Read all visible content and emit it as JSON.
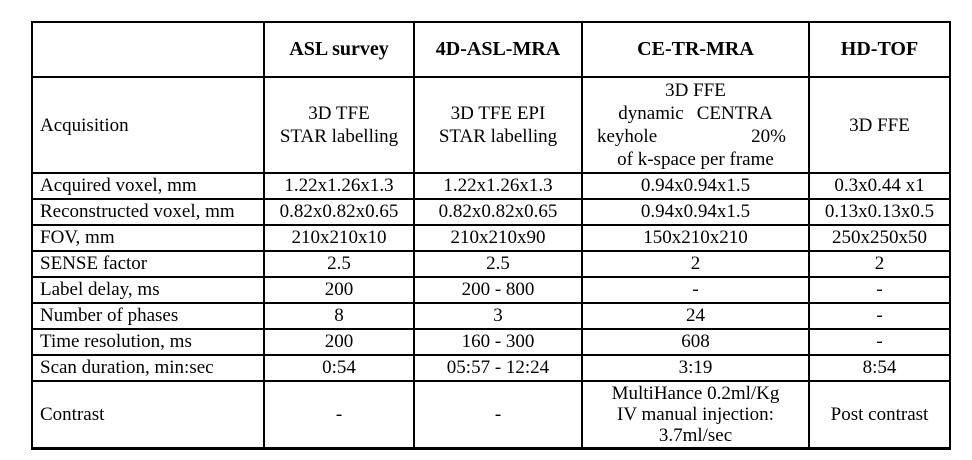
{
  "table": {
    "header": {
      "col1": "ASL survey",
      "col2": "4D-ASL-MRA",
      "col3": "CE-TR-MRA",
      "col4": "HD-TOF"
    },
    "acquisition": {
      "label": "Acquisition",
      "asl_survey_line1": "3D TFE",
      "asl_survey_line2": "STAR labelling",
      "asl_mra_line1": "3D TFE EPI",
      "asl_mra_line2": "STAR labelling",
      "ce_line1": "3D FFE",
      "ce_line2_word1": "dynamic",
      "ce_line2_word2": "CENTRA",
      "ce_line3_left": "keyhole",
      "ce_line3_right": "20%",
      "ce_line4": "of k-space per frame",
      "hd_tof": "3D FFE"
    },
    "rows": [
      {
        "label": "Acquired voxel, mm",
        "v1": "1.22x1.26x1.3",
        "v2": "1.22x1.26x1.3",
        "v3": "0.94x0.94x1.5",
        "v4": "0.3x0.44 x1"
      },
      {
        "label": "Reconstructed voxel, mm",
        "v1": "0.82x0.82x0.65",
        "v2": "0.82x0.82x0.65",
        "v3": "0.94x0.94x1.5",
        "v4": "0.13x0.13x0.5"
      },
      {
        "label": "FOV, mm",
        "v1": "210x210x10",
        "v2": "210x210x90",
        "v3": "150x210x210",
        "v4": "250x250x50"
      },
      {
        "label": "SENSE factor",
        "v1": "2.5",
        "v2": "2.5",
        "v3": "2",
        "v4": "2"
      },
      {
        "label": "Label delay, ms",
        "v1": "200",
        "v2": "200 - 800",
        "v3": "-",
        "v4": "-"
      },
      {
        "label": "Number of phases",
        "v1": "8",
        "v2": "3",
        "v3": "24",
        "v4": "-"
      },
      {
        "label": "Time resolution, ms",
        "v1": "200",
        "v2": "160 - 300",
        "v3": "608",
        "v4": "-"
      },
      {
        "label": "Scan duration, min:sec",
        "v1": "0:54",
        "v2": "05:57 - 12:24",
        "v3": "3:19",
        "v4": "8:54"
      }
    ],
    "contrast": {
      "label": "Contrast",
      "asl_survey": "-",
      "asl_mra": "-",
      "ce_line1": "MultiHance 0.2ml/Kg",
      "ce_line2": "IV manual injection:",
      "ce_line3": "3.7ml/sec",
      "hd_tof": "Post contrast"
    }
  }
}
